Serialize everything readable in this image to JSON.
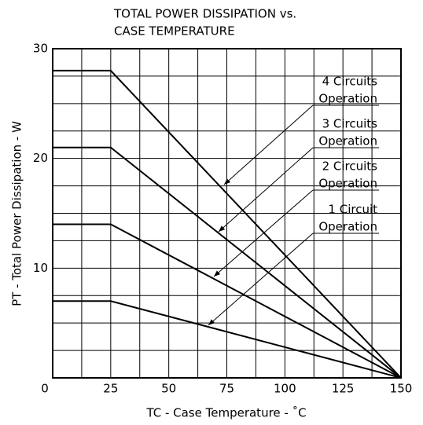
{
  "chart_data": {
    "type": "line",
    "title": [
      "TOTAL POWER DISSIPATION vs.",
      "CASE TEMPERATURE"
    ],
    "xlabel": "TC - Case Temperature - ˚C",
    "ylabel": "PT - Total Power Dissipation - W",
    "x": [
      0,
      25,
      150
    ],
    "series": [
      {
        "name": "4 Circuits Operation",
        "label_lines": [
          "4 Circuits",
          "Operation"
        ],
        "color": "#000000",
        "values": [
          28,
          28,
          0
        ]
      },
      {
        "name": "3 Circuits Operation",
        "label_lines": [
          "3 Circuits",
          "Operation"
        ],
        "color": "#000000",
        "values": [
          21,
          21,
          0
        ]
      },
      {
        "name": "2 Circuits Operation",
        "label_lines": [
          "2 Circuits",
          "Operation"
        ],
        "color": "#000000",
        "values": [
          14,
          14,
          0
        ]
      },
      {
        "name": "1 Circuit Operation",
        "label_lines": [
          "1 Circuit",
          "Operation"
        ],
        "color": "#000000",
        "values": [
          7,
          7,
          0
        ]
      }
    ],
    "xlim": [
      0,
      150
    ],
    "xticks": [
      0,
      25,
      50,
      75,
      100,
      125,
      150
    ],
    "ylim": [
      0,
      30
    ],
    "yticks": [
      10,
      20,
      30
    ],
    "xminorticks": [
      12.5,
      37.5,
      62.5,
      87.5,
      112.5,
      137.5
    ],
    "yminorticks": [
      2.5,
      5,
      7.5,
      12.5,
      15,
      17.5,
      22.5,
      25,
      27.5
    ],
    "grid": true
  }
}
